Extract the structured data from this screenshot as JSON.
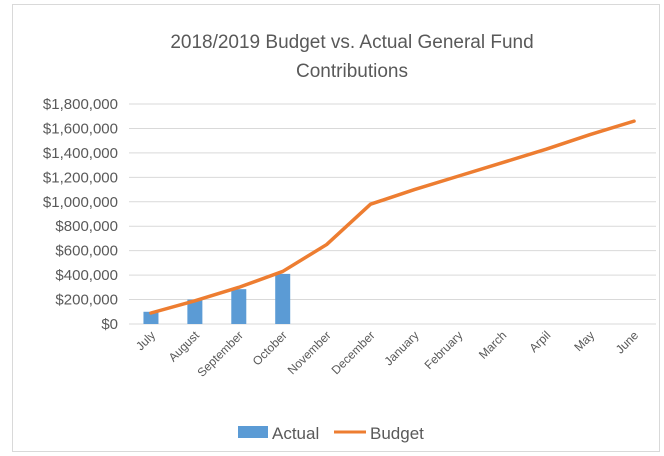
{
  "chart_data": {
    "type": "bar",
    "title_lines": [
      "2018/2019 Budget vs. Actual General Fund",
      "Contributions"
    ],
    "categories": [
      "July",
      "August",
      "September",
      "October",
      "November",
      "December",
      "January",
      "February",
      "March",
      "Arpil",
      "May",
      "June"
    ],
    "y_ticks": [
      "$0",
      "$200,000",
      "$400,000",
      "$600,000",
      "$800,000",
      "$1,000,000",
      "$1,200,000",
      "$1,400,000",
      "$1,600,000",
      "$1,800,000"
    ],
    "ylim": [
      0,
      1800000
    ],
    "grid": true,
    "legend_placement": "bottom",
    "series": [
      {
        "name": "Actual",
        "type": "bar",
        "color": "#5b9bd5",
        "values": [
          100000,
          200000,
          285000,
          410000,
          null,
          null,
          null,
          null,
          null,
          null,
          null,
          null
        ]
      },
      {
        "name": "Budget",
        "type": "line",
        "color": "#ed7d31",
        "values": [
          90000,
          190000,
          300000,
          430000,
          650000,
          980000,
          1100000,
          1210000,
          1320000,
          1430000,
          1550000,
          1660000
        ]
      }
    ]
  }
}
